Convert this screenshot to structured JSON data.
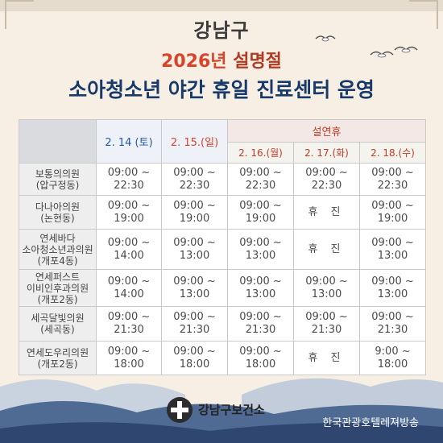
{
  "header": {
    "line1": "강남구",
    "line2_year": "2026년",
    "line2_fest": "설명절",
    "line3": "소아청소년 야간 휴일 진료센터 운영"
  },
  "table": {
    "holiday_group": "설연휴",
    "dates": [
      "2. 14 (토)",
      "2. 15.(일)",
      "2. 16.(월)",
      "2. 17.(화)",
      "2. 18.(수)"
    ],
    "rows": [
      {
        "name": [
          "보통의의원",
          "(압구정동)"
        ],
        "times": [
          "09:00 ~ 22:30",
          "09:00 ~ 22:30",
          "09:00 ~ 22:30",
          "09:00 ~ 22:30",
          "09:00 ~ 22:30"
        ]
      },
      {
        "name": [
          "다나아의원",
          "(논현동)"
        ],
        "times": [
          "09:00 ~ 19:00",
          "09:00 ~ 19:00",
          "09:00 ~ 19:00",
          "휴 진",
          "09:00 ~ 19:00"
        ]
      },
      {
        "name": [
          "연세바다",
          "소아청소년과의원",
          "(개포4동)"
        ],
        "times": [
          "09:00 ~ 14:00",
          "09:00 ~ 13:00",
          "09:00 ~ 13:00",
          "휴 진",
          "09:00 ~ 13:00"
        ]
      },
      {
        "name": [
          "연세퍼스트",
          "이비인후과의원",
          "(개포2동)"
        ],
        "times": [
          "09:00 ~ 14:00",
          "09:00 ~ 13:00",
          "09:00 ~ 13:00",
          "09:00 ~ 13:00",
          "09:00 ~ 13:00"
        ]
      },
      {
        "name": [
          "세곡달빛의원",
          "(세곡동)"
        ],
        "times": [
          "09:00 ~ 21:30",
          "09:00 ~ 21:30",
          "09:00 ~ 21:30",
          "09:00 ~ 21:30",
          "09:00 ~ 21:30"
        ]
      },
      {
        "name": [
          "연세도우리의원",
          "(개포2동)"
        ],
        "times": [
          "09:00 ~ 18:00",
          "09:00 ~ 18:00",
          "09:00 ~ 18:00",
          "휴 진",
          "9:00 ~ 18:00"
        ]
      }
    ]
  },
  "footer": {
    "org": "강남구보건소",
    "broadcaster": "한국관광호텔레져방송"
  },
  "colors": {
    "title_navy": "#173a6b",
    "accent_red": "#d8432a",
    "date_blue": "#1f5aa8"
  }
}
